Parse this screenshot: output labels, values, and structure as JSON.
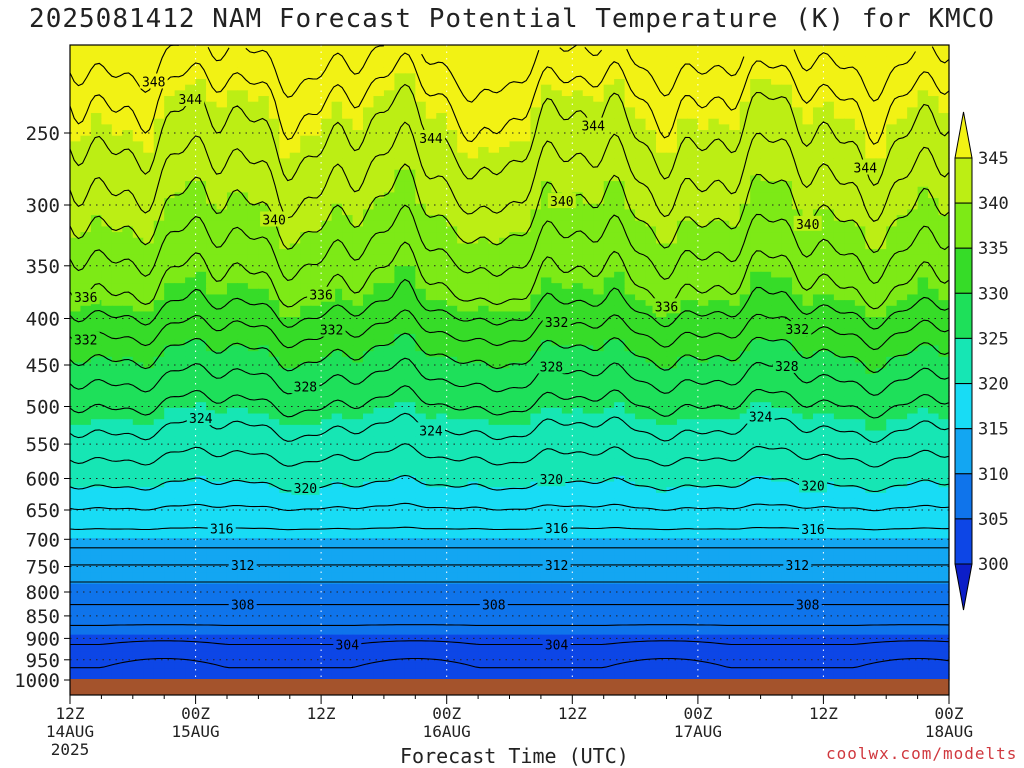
{
  "title": "2025081412 NAM Forecast Potential Temperature (K) for KMCO",
  "credit": "coolwx.com/modelts",
  "chart_data": {
    "type": "heatmap",
    "title": "2025081412 NAM Forecast Potential Temperature (K) for KMCO",
    "xlabel": "Forecast Time (UTC)",
    "ylabel": "",
    "x_ticks": [
      {
        "hour": 0,
        "label": "12Z",
        "sub": "14AUG",
        "sub2": "2025"
      },
      {
        "hour": 12,
        "label": "00Z",
        "sub": "15AUG",
        "sub2": ""
      },
      {
        "hour": 24,
        "label": "12Z",
        "sub": "",
        "sub2": ""
      },
      {
        "hour": 36,
        "label": "00Z",
        "sub": "16AUG",
        "sub2": ""
      },
      {
        "hour": 48,
        "label": "12Z",
        "sub": "",
        "sub2": ""
      },
      {
        "hour": 60,
        "label": "00Z",
        "sub": "17AUG",
        "sub2": ""
      },
      {
        "hour": 72,
        "label": "12Z",
        "sub": "",
        "sub2": ""
      },
      {
        "hour": 84,
        "label": "00Z",
        "sub": "18AUG",
        "sub2": ""
      }
    ],
    "x_range_hours": [
      0,
      84
    ],
    "y_ticks_hpa": [
      250,
      300,
      350,
      400,
      450,
      500,
      550,
      600,
      650,
      700,
      750,
      800,
      850,
      900,
      950,
      1000
    ],
    "y_range_hpa": [
      200,
      1000
    ],
    "colorbar": {
      "levels": [
        300,
        305,
        310,
        315,
        320,
        325,
        330,
        335,
        340,
        345
      ],
      "labels": [
        "300",
        "305",
        "310",
        "315",
        "320",
        "325",
        "330",
        "335",
        "340",
        "345"
      ],
      "colors": [
        "#0c1ec8",
        "#0d46e6",
        "#0f74eb",
        "#13a6f2",
        "#18dcf5",
        "#16e6b4",
        "#1ee05a",
        "#36dc28",
        "#7dea16",
        "#bcee14",
        "#f2f214"
      ],
      "extend": "both"
    },
    "contour_interval_K": 2,
    "contour_labels": [
      {
        "value": 348,
        "hour": 8
      },
      {
        "value": 344,
        "hour": 11.5
      },
      {
        "value": 344,
        "hour": 34.5
      },
      {
        "value": 344,
        "hour": 50
      },
      {
        "value": 344,
        "hour": 76
      },
      {
        "value": 340,
        "hour": 19.5
      },
      {
        "value": 340,
        "hour": 47
      },
      {
        "value": 340,
        "hour": 70.5
      },
      {
        "value": 336,
        "hour": 1.5
      },
      {
        "value": 336,
        "hour": 24
      },
      {
        "value": 336,
        "hour": 57
      },
      {
        "value": 332,
        "hour": 1.5
      },
      {
        "value": 332,
        "hour": 25
      },
      {
        "value": 332,
        "hour": 46.5
      },
      {
        "value": 332,
        "hour": 69.5
      },
      {
        "value": 328,
        "hour": 22.5
      },
      {
        "value": 328,
        "hour": 46
      },
      {
        "value": 328,
        "hour": 68.5
      },
      {
        "value": 324,
        "hour": 12.5
      },
      {
        "value": 324,
        "hour": 34.5
      },
      {
        "value": 324,
        "hour": 66
      },
      {
        "value": 320,
        "hour": 22.5
      },
      {
        "value": 320,
        "hour": 46
      },
      {
        "value": 320,
        "hour": 71
      },
      {
        "value": 316,
        "hour": 14.5
      },
      {
        "value": 316,
        "hour": 46.5
      },
      {
        "value": 316,
        "hour": 71
      },
      {
        "value": 312,
        "hour": 16.5
      },
      {
        "value": 312,
        "hour": 46.5
      },
      {
        "value": 312,
        "hour": 69.5
      },
      {
        "value": 308,
        "hour": 16.5
      },
      {
        "value": 308,
        "hour": 40.5
      },
      {
        "value": 308,
        "hour": 70.5
      },
      {
        "value": 304,
        "hour": 26.5
      },
      {
        "value": 304,
        "hour": 46.5
      }
    ],
    "theta_profile": [
      {
        "hpa": 1000,
        "theta": 301
      },
      {
        "hpa": 925,
        "theta": 303.5
      },
      {
        "hpa": 850,
        "theta": 307
      },
      {
        "hpa": 780,
        "theta": 310
      },
      {
        "hpa": 700,
        "theta": 315
      },
      {
        "hpa": 620,
        "theta": 319.5
      },
      {
        "hpa": 520,
        "theta": 324.5
      },
      {
        "hpa": 430,
        "theta": 330.5
      },
      {
        "hpa": 380,
        "theta": 335
      },
      {
        "hpa": 300,
        "theta": 340.5
      },
      {
        "hpa": 250,
        "theta": 344
      },
      {
        "hpa": 230,
        "theta": 345.5
      },
      {
        "hpa": 200,
        "theta": 349
      }
    ]
  }
}
